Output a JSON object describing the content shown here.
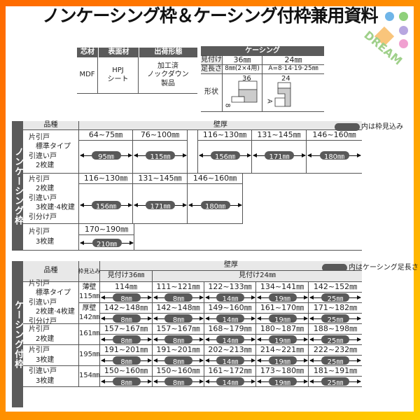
{
  "title": "ノンケーシング枠＆ケーシング付枠兼用資料",
  "logo": {
    "text": "DREAM",
    "colors": [
      "#6fb5e8",
      "#8fd07a",
      "#b7a7e0",
      "#f0a0d0",
      "#f7b65a"
    ]
  },
  "spec": {
    "headers": [
      "芯材",
      "表面材",
      "出荷形態"
    ],
    "core": "MDF",
    "surface": "HPJ\nシート",
    "shipping": "加工済\nノックダウン\n製品"
  },
  "casing_spec": {
    "header": "ケーシング",
    "rows": [
      {
        "label": "見付け",
        "v36": "36㎜",
        "v24": "24㎜"
      },
      {
        "label": "足長さ",
        "v36": "8㎜(2×4用)",
        "v24": "A=8·14·19·25㎜"
      }
    ],
    "shape_label": "形状",
    "shape36_dim": "36",
    "shape36_leg": "8",
    "shape24_dim": "24",
    "shape24_leg": "A"
  },
  "noncasing": {
    "label": "ノンケーシング枠",
    "hinshu": "品種",
    "wall": "壁厚",
    "legend": "内は枠見込み",
    "rows": [
      {
        "types": "片引戸\n　標準タイプ\n引違い戸\n　2枚建",
        "cells": [
          {
            "range": "64~75㎜",
            "depth": "95㎜"
          },
          {
            "range": "76~100㎜",
            "depth": "115㎜"
          },
          {
            "range": "116~130㎜",
            "depth": "156㎜"
          },
          {
            "range": "131~145㎜",
            "depth": "171㎜"
          },
          {
            "range": "146~160㎜",
            "depth": "180㎜"
          }
        ]
      },
      {
        "types": "片引戸\n　2枚建\n引違い戸\n　3枚建·4枚建\n引分け戸",
        "cells": [
          {
            "range": "116~130㎜",
            "depth": "156㎜"
          },
          {
            "range": "131~145㎜",
            "depth": "171㎜"
          },
          {
            "range": "146~160㎜",
            "depth": "180㎜"
          }
        ]
      },
      {
        "types": "片引戸\n　3枚建",
        "cells": [
          {
            "range": "170~190㎜",
            "depth": "210㎜"
          }
        ]
      }
    ]
  },
  "casing": {
    "label": "ケーシング付枠",
    "hinshu": "品種",
    "waku": "枠見込み",
    "wall": "壁厚",
    "legend": "内はケーシング足長さ",
    "mitsuke36": "見付け36㎜",
    "mitsuke24": "見付け24㎜",
    "legs": [
      "8㎜",
      "8㎜",
      "14㎜",
      "19㎜",
      "25㎜"
    ],
    "groups": [
      {
        "types": "片引戸\n　標準タイプ\n引違い戸\n　2枚建·4枚建\n引分け戸",
        "subrows": [
          {
            "waku": "薄壁\n115㎜",
            "ranges": [
              "114㎜",
              "111~121㎜",
              "122~133㎜",
              "134~141㎜",
              "142~152㎜"
            ]
          },
          {
            "waku": "厚壁\n142㎜",
            "ranges": [
              "142~148㎜",
              "142~148㎜",
              "149~160㎜",
              "161~170㎜",
              "171~182㎜"
            ]
          }
        ]
      },
      {
        "types": "片引戸\n　2枚建",
        "subrows": [
          {
            "waku": "161㎜",
            "ranges": [
              "157~167㎜",
              "157~167㎜",
              "168~179㎜",
              "180~187㎜",
              "188~198㎜"
            ]
          }
        ]
      },
      {
        "types": "片引戸\n　3枚建",
        "subrows": [
          {
            "waku": "195㎜",
            "ranges": [
              "191~201㎜",
              "191~201㎜",
              "202~213㎜",
              "214~221㎜",
              "222~232㎜"
            ]
          }
        ]
      },
      {
        "types": "引違い戸\n　3枚建",
        "subrows": [
          {
            "waku": "154㎜",
            "ranges": [
              "150~160㎜",
              "150~160㎜",
              "161~172㎜",
              "173~180㎜",
              "181~191㎜"
            ]
          }
        ]
      }
    ]
  }
}
